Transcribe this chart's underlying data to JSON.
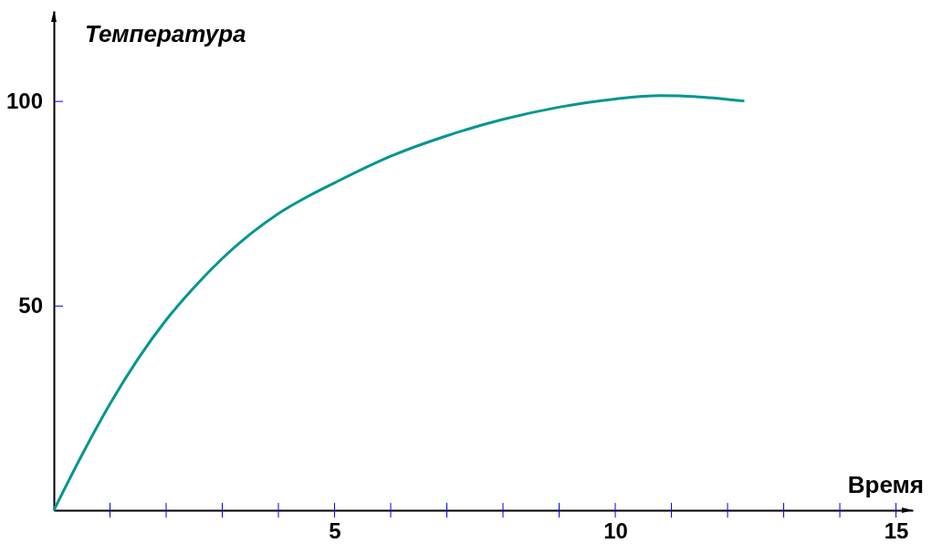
{
  "chart_data": {
    "type": "line",
    "xlabel": "Время",
    "ylabel": "Температура",
    "x": [
      0,
      0.5,
      1,
      1.5,
      2,
      2.5,
      3,
      3.5,
      4,
      4.5,
      5,
      6,
      7,
      8,
      9,
      10,
      10.8,
      11.5,
      12.3
    ],
    "series": [
      {
        "color": "#009690",
        "values": [
          0,
          13.5,
          26,
          37,
          46.5,
          54.5,
          61.5,
          67.5,
          72.5,
          76.5,
          80,
          86.5,
          91.5,
          95.5,
          98.5,
          100.5,
          101.3,
          101,
          100
        ]
      }
    ],
    "xlim": [
      0,
      15.3
    ],
    "ylim": [
      0,
      122
    ],
    "xticks": [
      {
        "value": 1,
        "label": null
      },
      {
        "value": 2,
        "label": null
      },
      {
        "value": 3,
        "label": null
      },
      {
        "value": 4,
        "label": null
      },
      5,
      {
        "value": 6,
        "label": null
      },
      {
        "value": 7,
        "label": null
      },
      {
        "value": 8,
        "label": null
      },
      {
        "value": 9,
        "label": null
      },
      10,
      {
        "value": 11,
        "label": null
      },
      {
        "value": 12,
        "label": null
      },
      {
        "value": 13,
        "label": null
      },
      {
        "value": 14,
        "label": null
      },
      15
    ],
    "yticks": [
      50,
      100
    ],
    "line_style": "solid"
  }
}
